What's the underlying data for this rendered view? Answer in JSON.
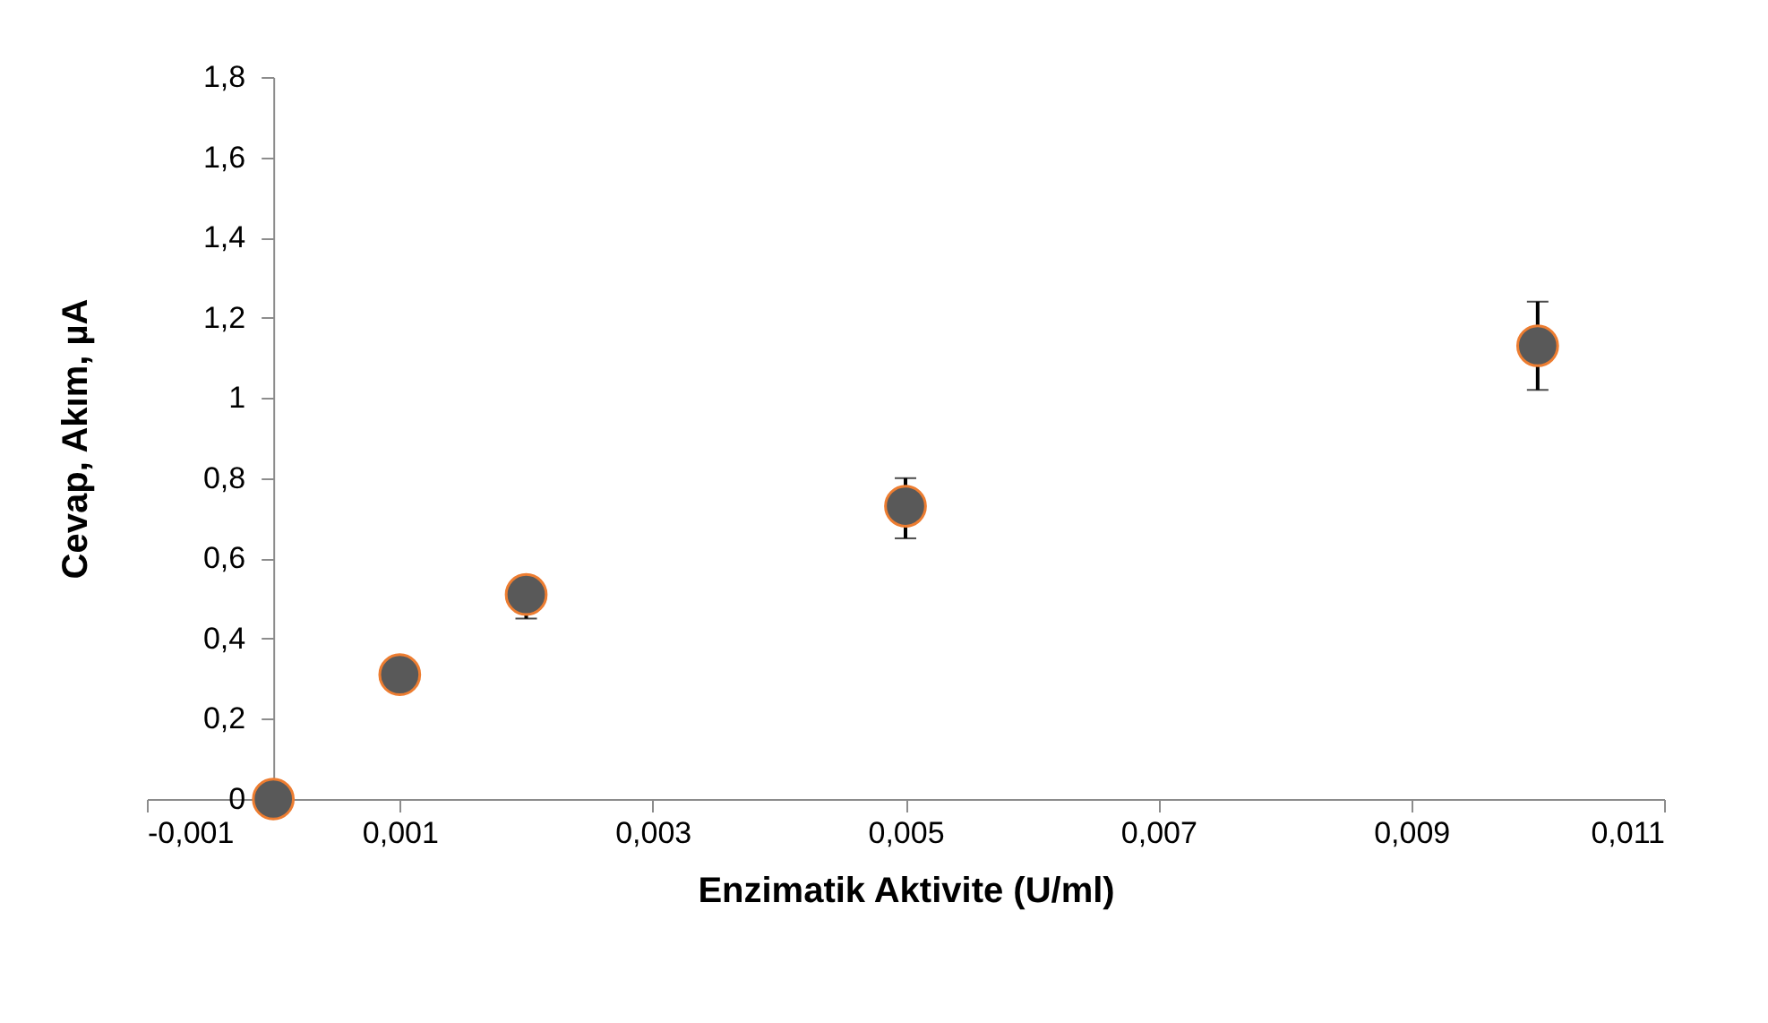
{
  "chart_data": {
    "type": "scatter",
    "xlabel": "Enzimatik Aktivite (U/ml)",
    "ylabel": "Cevap, Akım, µA",
    "x": [
      0,
      0.001,
      0.002,
      0.005,
      0.01
    ],
    "series": [
      {
        "color": "#595959",
        "values": [
          0,
          0.31,
          0.51,
          0.73,
          1.13
        ],
        "errors": [
          null,
          null,
          [
            0.45,
            0.51
          ],
          [
            0.65,
            0.8
          ],
          [
            1.02,
            1.24
          ]
        ]
      }
    ],
    "xlim": [
      -0.001,
      0.011
    ],
    "xticks": [
      {
        "value": -0.001,
        "label": "-0,001"
      },
      {
        "value": 0.001,
        "label": "0,001"
      },
      {
        "value": 0.003,
        "label": "0,003"
      },
      {
        "value": 0.005,
        "label": "0,005"
      },
      {
        "value": 0.007,
        "label": "0,007"
      },
      {
        "value": 0.009,
        "label": "0,009"
      },
      {
        "value": 0.011,
        "label": "0,011"
      }
    ],
    "ylim": [
      0,
      1.8
    ],
    "yticks": [
      0,
      {
        "value": 0.2,
        "label": "0,2"
      },
      {
        "value": 0.4,
        "label": "0,4"
      },
      {
        "value": 0.6,
        "label": "0,6"
      },
      {
        "value": 0.8,
        "label": "0,8"
      },
      1,
      {
        "value": 1.2,
        "label": "1,2"
      },
      {
        "value": 1.4,
        "label": "1,4"
      },
      {
        "value": 1.6,
        "label": "1,6"
      },
      {
        "value": 1.8,
        "label": "1,8"
      }
    ],
    "grid": false,
    "marker": "circle",
    "legend": false
  }
}
